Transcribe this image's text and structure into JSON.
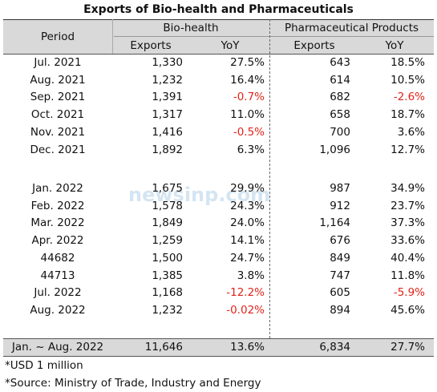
{
  "title": "Exports of Bio-health and Pharmaceuticals",
  "header": {
    "period": "Period",
    "groups": [
      "Bio-health",
      "Pharmaceutical Products"
    ],
    "columns": [
      "Exports",
      "YoY",
      "Exports",
      "YoY"
    ]
  },
  "table": {
    "sections": [
      [
        [
          "Jul. 2021",
          "1,330",
          "27.5%",
          "643",
          "18.5%"
        ],
        [
          "Aug. 2021",
          "1,232",
          "16.4%",
          "614",
          "10.5%"
        ],
        [
          "Sep. 2021",
          "1,391",
          "-0.7%",
          "682",
          "-2.6%"
        ],
        [
          "Oct. 2021",
          "1,317",
          "11.0%",
          "658",
          "18.7%"
        ],
        [
          "Nov. 2021",
          "1,416",
          "-0.5%",
          "700",
          "3.6%"
        ],
        [
          "Dec. 2021",
          "1,892",
          "6.3%",
          "1,096",
          "12.7%"
        ]
      ],
      [
        [
          "Jan. 2022",
          "1,675",
          "29.9%",
          "987",
          "34.9%"
        ],
        [
          "Feb. 2022",
          "1,578",
          "24.3%",
          "912",
          "23.7%"
        ],
        [
          "Mar. 2022",
          "1,849",
          "24.0%",
          "1,164",
          "37.3%"
        ],
        [
          "Apr. 2022",
          "1,259",
          "14.1%",
          "676",
          "33.6%"
        ],
        [
          "44682",
          "1,500",
          "24.7%",
          "849",
          "40.4%"
        ],
        [
          "44713",
          "1,385",
          "3.8%",
          "747",
          "11.8%"
        ],
        [
          "Jul. 2022",
          "1,168",
          "-12.2%",
          "605",
          "-5.9%"
        ],
        [
          "Aug. 2022",
          "1,232",
          "-0.02%",
          "894",
          "45.6%"
        ]
      ]
    ],
    "total": [
      "Jan. ~ Aug. 2022",
      "11,646",
      "13.6%",
      "6,834",
      "27.7%"
    ]
  },
  "notes": [
    "*USD 1 million",
    "*Source: Ministry of Trade, Industry and Energy"
  ],
  "watermark": "newsinp.com"
}
